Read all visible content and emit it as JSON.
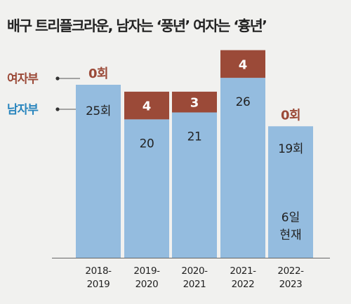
{
  "title": "배구 트리플크라운, 남자는 ‘풍년’ 여자는 ‘흉년’",
  "colors": {
    "men": "#94bcdf",
    "women": "#9b4a38",
    "men_label": "#2a86be",
    "women_label": "#9b4a38",
    "axis": "#666666"
  },
  "legend": [
    {
      "key": "women",
      "label": "여자부"
    },
    {
      "key": "men",
      "label": "남자부"
    }
  ],
  "chart_data": {
    "type": "bar",
    "stacked": true,
    "categories": [
      "2018-2019",
      "2019-2020",
      "2020-2021",
      "2021-2022",
      "2022-2023"
    ],
    "category_labels": [
      [
        "2018-",
        "2019"
      ],
      [
        "2019-",
        "2020"
      ],
      [
        "2020-",
        "2021"
      ],
      [
        "2021-",
        "2022"
      ],
      [
        "2022-",
        "2023"
      ]
    ],
    "series": [
      {
        "name": "남자부",
        "key": "men",
        "values": [
          25,
          20,
          21,
          26,
          19
        ]
      },
      {
        "name": "여자부",
        "key": "women",
        "values": [
          0,
          4,
          3,
          4,
          0
        ]
      }
    ],
    "value_labels": {
      "men": [
        "25회",
        "20",
        "21",
        "26",
        "19회"
      ],
      "women": [
        "0회",
        "4",
        "3",
        "4",
        "0회"
      ]
    },
    "annotation": [
      "6일",
      "현재"
    ],
    "title": "배구 트리플크라운, 남자는 ‘풍년’ 여자는 ‘흉년’",
    "xlabel": "",
    "ylabel": "",
    "ylim": [
      0,
      31
    ],
    "grid": false
  }
}
